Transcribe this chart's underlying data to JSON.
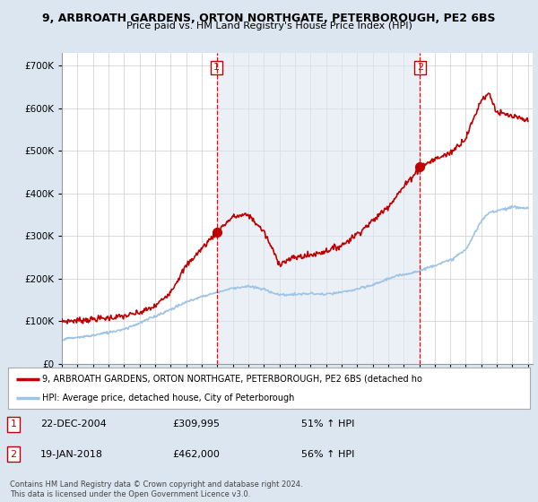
{
  "title1": "9, ARBROATH GARDENS, ORTON NORTHGATE, PETERBOROUGH, PE2 6BS",
  "title2": "Price paid vs. HM Land Registry's House Price Index (HPI)",
  "ytick_vals": [
    0,
    100000,
    200000,
    300000,
    400000,
    500000,
    600000,
    700000
  ],
  "ylim": [
    0,
    730000
  ],
  "sale1_date": "22-DEC-2004",
  "sale1_price": 309995,
  "sale1_hpi": "51% ↑ HPI",
  "sale2_date": "19-JAN-2018",
  "sale2_price": 462000,
  "sale2_hpi": "56% ↑ HPI",
  "legend_line1": "9, ARBROATH GARDENS, ORTON NORTHGATE, PETERBOROUGH, PE2 6BS (detached ho",
  "legend_line2": "HPI: Average price, detached house, City of Peterborough",
  "footer": "Contains HM Land Registry data © Crown copyright and database right 2024.\nThis data is licensed under the Open Government Licence v3.0.",
  "bg_color": "#dce6f1",
  "plot_bg_color": "#ffffff",
  "shade_color": "#dce6f1",
  "red_line_color": "#c00000",
  "blue_line_color": "#9dc3e6",
  "vline_color": "#ff0000",
  "start_year": 1995,
  "end_year": 2025,
  "sale1_year": 2004.97,
  "sale2_year": 2018.05,
  "red_anchors_x": [
    1995,
    1996,
    1997,
    1998,
    1999,
    2000,
    2001,
    2002,
    2003,
    2004.97,
    2006,
    2007,
    2008,
    2009,
    2010,
    2011,
    2012,
    2013,
    2014,
    2015,
    2016,
    2017,
    2018.05,
    2019,
    2020,
    2021,
    2022,
    2022.5,
    2023,
    2024,
    2025
  ],
  "red_anchors_y": [
    100000,
    102000,
    105000,
    108000,
    112000,
    120000,
    135000,
    170000,
    230000,
    309995,
    345000,
    350000,
    310000,
    235000,
    250000,
    255000,
    265000,
    278000,
    305000,
    335000,
    370000,
    415000,
    462000,
    480000,
    495000,
    530000,
    620000,
    635000,
    590000,
    580000,
    570000
  ],
  "blue_anchors_x": [
    1995,
    1996,
    1997,
    1998,
    1999,
    2000,
    2001,
    2002,
    2003,
    2004,
    2005,
    2006,
    2007,
    2008,
    2009,
    2010,
    2011,
    2012,
    2013,
    2014,
    2015,
    2016,
    2017,
    2018,
    2019,
    2020,
    2021,
    2022,
    2022.5,
    2023,
    2024,
    2025
  ],
  "blue_anchors_y": [
    58000,
    62000,
    67000,
    74000,
    82000,
    96000,
    112000,
    128000,
    145000,
    158000,
    168000,
    178000,
    182000,
    175000,
    162000,
    163000,
    165000,
    163000,
    168000,
    175000,
    185000,
    200000,
    210000,
    218000,
    232000,
    243000,
    268000,
    335000,
    355000,
    360000,
    368000,
    365000
  ]
}
